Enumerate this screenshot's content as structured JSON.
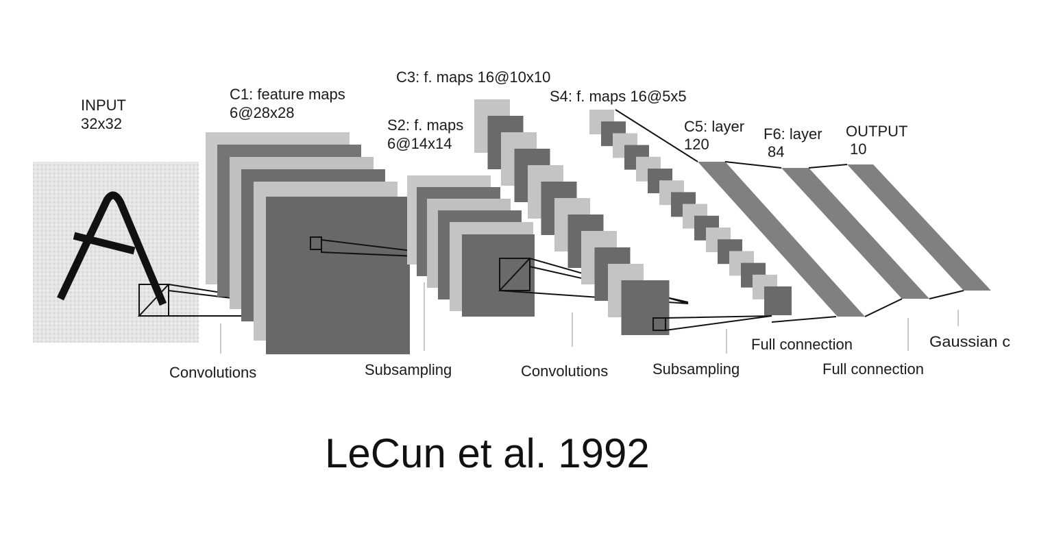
{
  "diagram": {
    "layers": {
      "input": {
        "name": "INPUT",
        "size": "32x32"
      },
      "c1": {
        "name": "C1: feature maps",
        "size": "6@28x28"
      },
      "s2": {
        "name": "S2: f. maps",
        "size": "6@14x14"
      },
      "c3": {
        "name": "C3: f. maps 16@10x10"
      },
      "s4": {
        "name": "S4: f. maps 16@5x5"
      },
      "c5": {
        "name": "C5: layer",
        "size": "120"
      },
      "f6": {
        "name": "F6: layer",
        "size": "84"
      },
      "output": {
        "name": "OUTPUT",
        "size": "10"
      }
    },
    "operations": {
      "conv1": "Convolutions",
      "sub1": "Subsampling",
      "conv2": "Convolutions",
      "sub2": "Subsampling",
      "full1": "Full connection",
      "full2": "Full connection",
      "gaussian": "Gaussian c"
    },
    "colors": {
      "map_dark": "#6a6a6a",
      "map_mid": "#8a8a8a",
      "map_light": "#c4c4c4",
      "input_bg": "#e6e6e6",
      "stroke": "#111111"
    }
  },
  "caption": "LeCun et al. 1992"
}
